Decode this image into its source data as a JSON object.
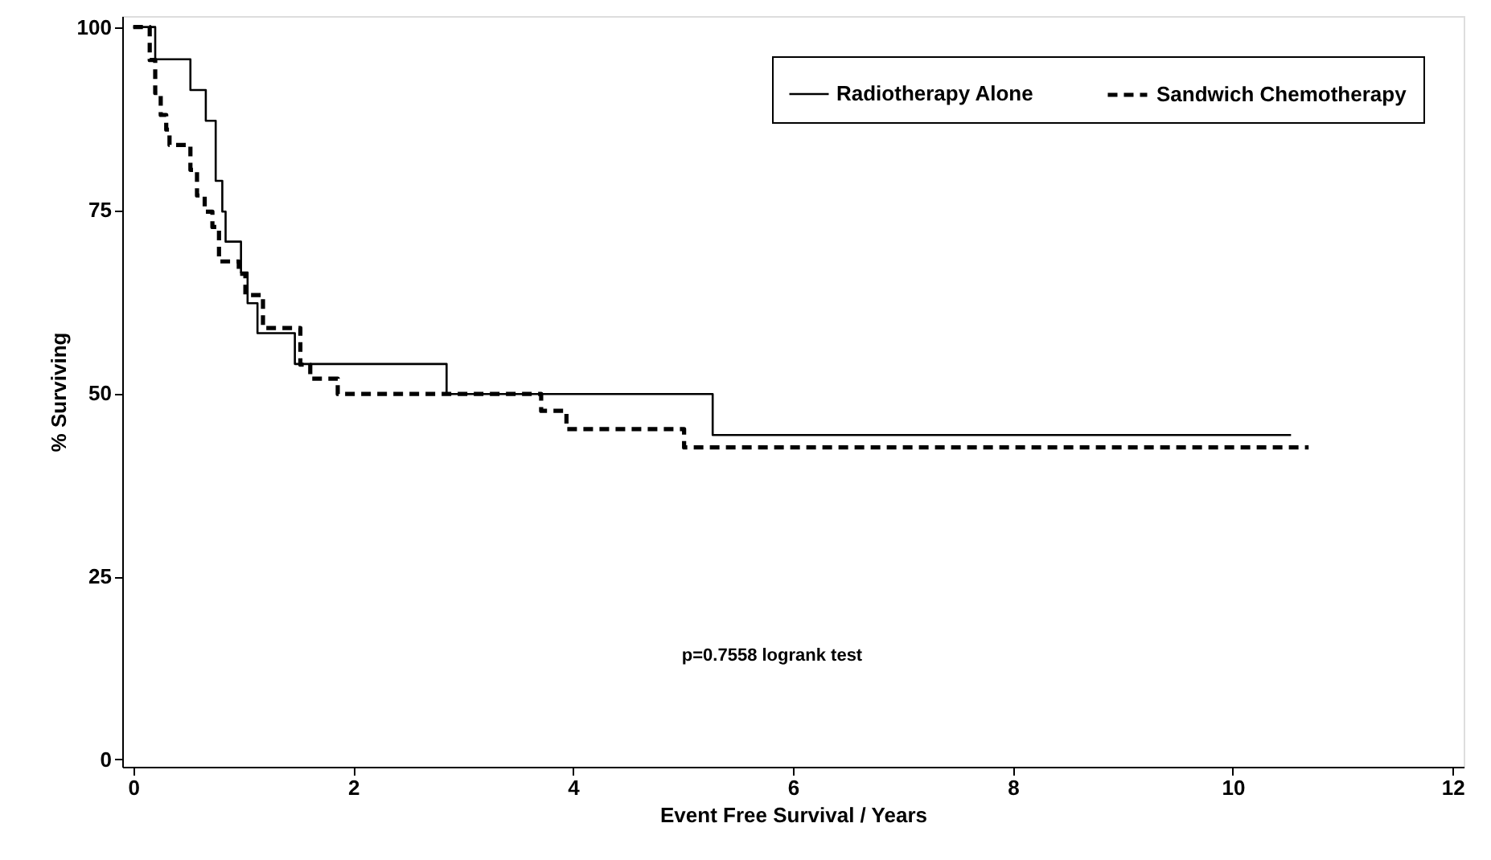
{
  "chart_data": {
    "type": "step",
    "xlabel": "Event Free Survival / Years",
    "ylabel": "% Surviving",
    "xlim": [
      -0.1,
      12.1
    ],
    "ylim": [
      -1,
      101.5
    ],
    "xticks": [
      0,
      2,
      4,
      6,
      8,
      10,
      12
    ],
    "yticks": [
      0,
      25,
      50,
      75,
      100
    ],
    "grid": false,
    "legend": "top right",
    "marker": "none",
    "annotations": [
      "p=0.7558 logrank test"
    ],
    "series": [
      {
        "name": "Radiotherapy Alone",
        "color": "#000000",
        "line_style": "solid",
        "x": [
          0,
          0.2,
          0.52,
          0.66,
          0.75,
          0.81,
          0.84,
          0.98,
          1.04,
          1.13,
          1.47,
          2.85,
          5.27,
          10.53
        ],
        "values": [
          100,
          95.6,
          91.4,
          87.2,
          79.0,
          74.8,
          70.7,
          66.5,
          62.3,
          58.2,
          54.0,
          49.9,
          44.3,
          44.3
        ]
      },
      {
        "name": "Sandwich Chemotherapy",
        "color": "#000000",
        "line_style": "dashed",
        "x": [
          0,
          0.15,
          0.2,
          0.25,
          0.3,
          0.33,
          0.52,
          0.58,
          0.65,
          0.72,
          0.78,
          0.96,
          1.02,
          1.18,
          1.52,
          1.61,
          1.86,
          3.71,
          3.94,
          5.01,
          10.69
        ],
        "values": [
          100,
          95.5,
          91,
          88,
          86,
          83.9,
          80.5,
          77.0,
          74.8,
          72.7,
          68.0,
          66.3,
          63.4,
          58.9,
          53.9,
          52.0,
          49.9,
          47.6,
          45.1,
          42.6,
          42.6
        ]
      }
    ]
  }
}
